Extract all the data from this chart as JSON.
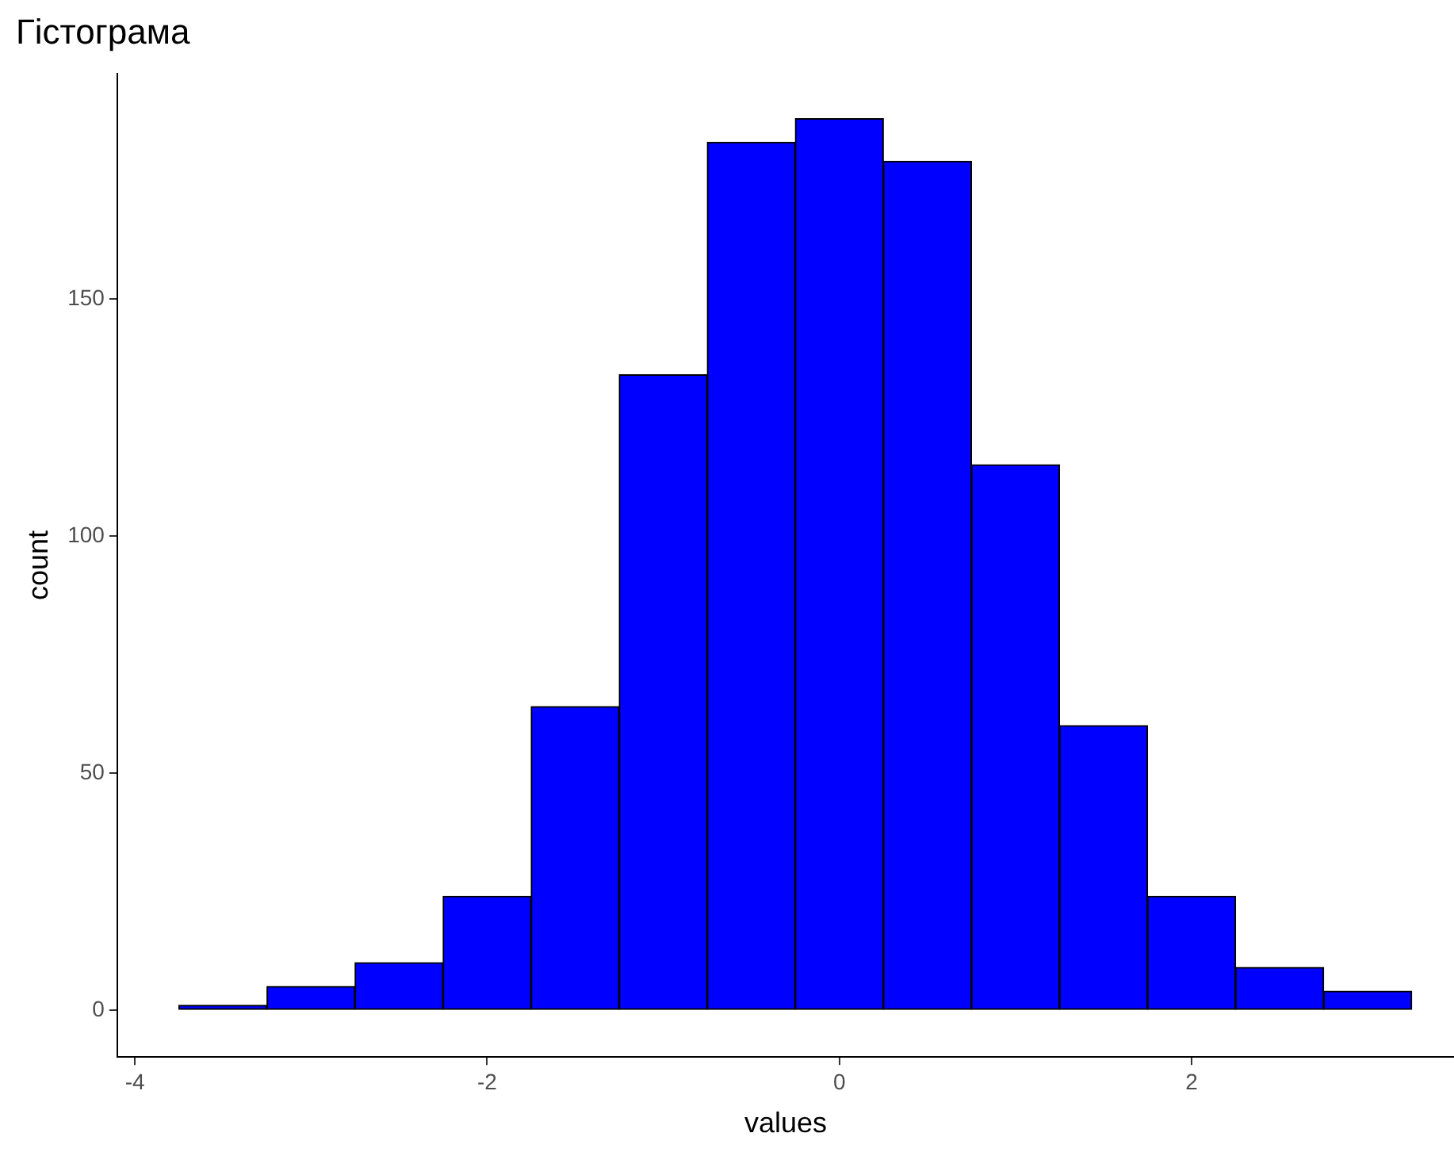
{
  "chart_data": {
    "type": "histogram",
    "title": "Гістограма",
    "xlabel": "values",
    "ylabel": "count",
    "bins": [
      -3.75,
      -3.25,
      -2.75,
      -2.25,
      -1.75,
      -1.25,
      -0.75,
      -0.25,
      0.25,
      0.75,
      1.25,
      1.75,
      2.25,
      2.75,
      3.25
    ],
    "values": [
      1,
      5,
      10,
      24,
      64,
      134,
      183,
      188,
      179,
      115,
      60,
      24,
      9,
      4
    ],
    "color": "#0000ff",
    "xlim": [
      -4.1,
      3.49
    ],
    "xticks": [
      -4,
      -2,
      0,
      2
    ],
    "ylim": [
      -9.9,
      197.5
    ],
    "yticks": [
      0,
      50,
      100,
      150
    ],
    "grid": false,
    "legend": false
  }
}
